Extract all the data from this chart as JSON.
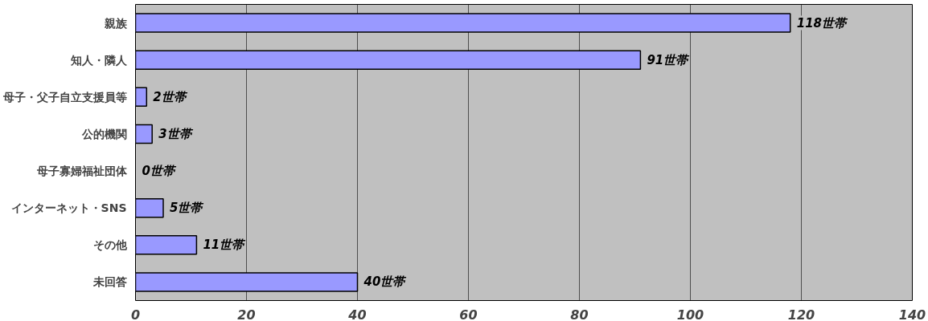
{
  "chart_data": {
    "type": "bar",
    "orientation": "horizontal",
    "categories": [
      "親族",
      "知人・隣人",
      "母子・父子自立支援員等",
      "公的機関",
      "母子寡婦福祉団体",
      "インターネット・SNS",
      "その他",
      "未回答"
    ],
    "values": [
      118,
      91,
      2,
      3,
      0,
      5,
      11,
      40
    ],
    "value_labels": [
      "118世帯",
      "91世帯",
      "2世帯",
      "3世帯",
      "0世帯",
      "5世帯",
      "11世帯",
      "40世帯"
    ],
    "color": "#9999ff",
    "xlim": [
      0,
      140
    ],
    "xticks": [
      0,
      20,
      40,
      60,
      80,
      100,
      120,
      140
    ],
    "grid": "x"
  }
}
